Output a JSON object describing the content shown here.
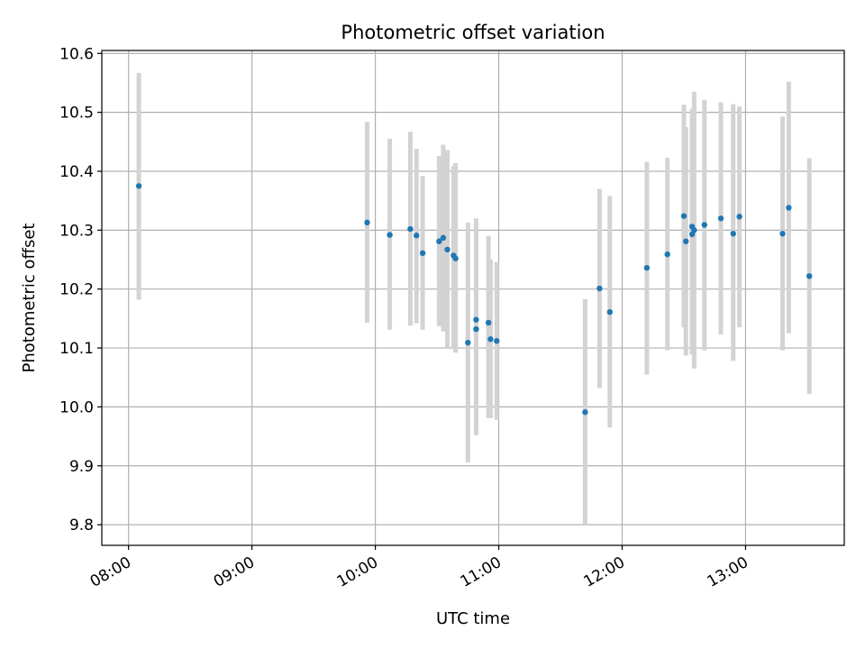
{
  "chart_data": {
    "type": "scatter",
    "title": "Photometric offset variation",
    "xlabel": "UTC time",
    "ylabel": "Photometric offset",
    "xlim": [
      "07:47",
      "13:48"
    ],
    "ylim": [
      9.765,
      10.605
    ],
    "grid": true,
    "x_ticks": [
      "08:00",
      "09:00",
      "10:00",
      "11:00",
      "12:00",
      "13:00"
    ],
    "y_ticks": [
      9.8,
      9.9,
      10.0,
      10.1,
      10.2,
      10.3,
      10.4,
      10.5,
      10.6
    ],
    "y_tick_labels": [
      "9.8",
      "9.9",
      "10.0",
      "10.1",
      "10.2",
      "10.3",
      "10.4",
      "10.5",
      "10.6"
    ],
    "colors": {
      "points": "#1f77b4",
      "errorbars": "#d3d3d3",
      "grid": "#b0b0b0"
    },
    "points": [
      {
        "x": "08:05",
        "y": 10.375,
        "ylow": 10.182,
        "yhigh": 10.567
      },
      {
        "x": "09:56",
        "y": 10.313,
        "ylow": 10.143,
        "yhigh": 10.484
      },
      {
        "x": "10:07",
        "y": 10.292,
        "ylow": 10.131,
        "yhigh": 10.455
      },
      {
        "x": "10:17",
        "y": 10.302,
        "ylow": 10.138,
        "yhigh": 10.467
      },
      {
        "x": "10:20",
        "y": 10.291,
        "ylow": 10.142,
        "yhigh": 10.438
      },
      {
        "x": "10:23",
        "y": 10.261,
        "ylow": 10.131,
        "yhigh": 10.392
      },
      {
        "x": "10:31",
        "y": 10.281,
        "ylow": 10.137,
        "yhigh": 10.426
      },
      {
        "x": "10:33",
        "y": 10.287,
        "ylow": 10.128,
        "yhigh": 10.445
      },
      {
        "x": "10:35",
        "y": 10.267,
        "ylow": 10.1,
        "yhigh": 10.436
      },
      {
        "x": "10:38",
        "y": 10.257,
        "ylow": 10.101,
        "yhigh": 10.409
      },
      {
        "x": "10:39",
        "y": 10.252,
        "ylow": 10.092,
        "yhigh": 10.414
      },
      {
        "x": "10:45",
        "y": 10.109,
        "ylow": 9.906,
        "yhigh": 10.313
      },
      {
        "x": "10:49",
        "y": 10.148,
        "ylow": 9.965,
        "yhigh": 10.32
      },
      {
        "x": "10:49",
        "y": 10.132,
        "ylow": 9.952,
        "yhigh": 10.305
      },
      {
        "x": "10:55",
        "y": 10.143,
        "ylow": 9.981,
        "yhigh": 10.29
      },
      {
        "x": "10:56",
        "y": 10.115,
        "ylow": 9.981,
        "yhigh": 10.25
      },
      {
        "x": "10:59",
        "y": 10.112,
        "ylow": 9.978,
        "yhigh": 10.246
      },
      {
        "x": "11:42",
        "y": 9.991,
        "ylow": 9.8,
        "yhigh": 10.183
      },
      {
        "x": "11:49",
        "y": 10.201,
        "ylow": 10.032,
        "yhigh": 10.37
      },
      {
        "x": "11:54",
        "y": 10.161,
        "ylow": 9.965,
        "yhigh": 10.358
      },
      {
        "x": "12:12",
        "y": 10.236,
        "ylow": 10.055,
        "yhigh": 10.416
      },
      {
        "x": "12:22",
        "y": 10.259,
        "ylow": 10.096,
        "yhigh": 10.423
      },
      {
        "x": "12:30",
        "y": 10.324,
        "ylow": 10.135,
        "yhigh": 10.513
      },
      {
        "x": "12:31",
        "y": 10.281,
        "ylow": 10.087,
        "yhigh": 10.475
      },
      {
        "x": "12:34",
        "y": 10.306,
        "ylow": 10.089,
        "yhigh": 10.506
      },
      {
        "x": "12:34",
        "y": 10.293,
        "ylow": 10.09,
        "yhigh": 10.495
      },
      {
        "x": "12:35",
        "y": 10.3,
        "ylow": 10.065,
        "yhigh": 10.535
      },
      {
        "x": "12:40",
        "y": 10.309,
        "ylow": 10.096,
        "yhigh": 10.521
      },
      {
        "x": "12:48",
        "y": 10.32,
        "ylow": 10.123,
        "yhigh": 10.517
      },
      {
        "x": "12:54",
        "y": 10.294,
        "ylow": 10.078,
        "yhigh": 10.514
      },
      {
        "x": "12:57",
        "y": 10.323,
        "ylow": 10.135,
        "yhigh": 10.51
      },
      {
        "x": "13:18",
        "y": 10.294,
        "ylow": 10.096,
        "yhigh": 10.493
      },
      {
        "x": "13:21",
        "y": 10.338,
        "ylow": 10.125,
        "yhigh": 10.552
      },
      {
        "x": "13:31",
        "y": 10.222,
        "ylow": 10.022,
        "yhigh": 10.422
      }
    ]
  }
}
